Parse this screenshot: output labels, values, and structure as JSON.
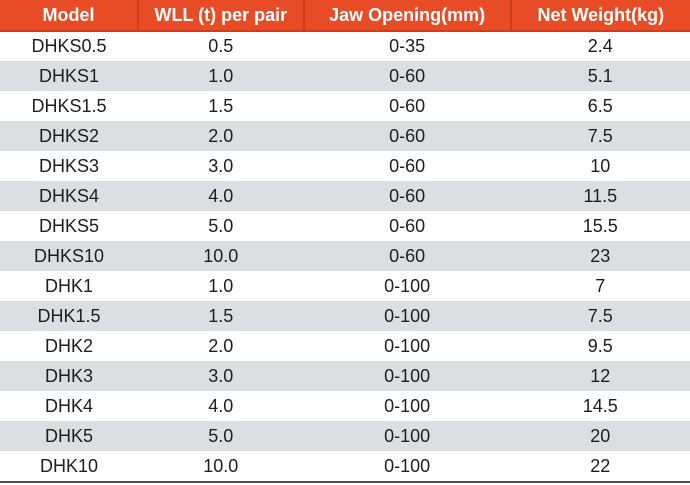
{
  "chart_data": {
    "type": "table",
    "columns": [
      "Model",
      "WLL (t) per pair",
      "Jaw Opening(mm)",
      "Net Weight(kg)"
    ],
    "rows": [
      [
        "DHKS0.5",
        "0.5",
        "0-35",
        "2.4"
      ],
      [
        "DHKS1",
        "1.0",
        "0-60",
        "5.1"
      ],
      [
        "DHKS1.5",
        "1.5",
        "0-60",
        "6.5"
      ],
      [
        "DHKS2",
        "2.0",
        "0-60",
        "7.5"
      ],
      [
        "DHKS3",
        "3.0",
        "0-60",
        "10"
      ],
      [
        "DHKS4",
        "4.0",
        "0-60",
        "11.5"
      ],
      [
        "DHKS5",
        "5.0",
        "0-60",
        "15.5"
      ],
      [
        "DHKS10",
        "10.0",
        "0-60",
        "23"
      ],
      [
        "DHK1",
        "1.0",
        "0-100",
        "7"
      ],
      [
        "DHK1.5",
        "1.5",
        "0-100",
        "7.5"
      ],
      [
        "DHK2",
        "2.0",
        "0-100",
        "9.5"
      ],
      [
        "DHK3",
        "3.0",
        "0-100",
        "12"
      ],
      [
        "DHK4",
        "4.0",
        "0-100",
        "14.5"
      ],
      [
        "DHK5",
        "5.0",
        "0-100",
        "20"
      ],
      [
        "DHK10",
        "10.0",
        "0-100",
        "22"
      ]
    ],
    "layout": {
      "header_row": true,
      "zebra_striping": true,
      "alignment": "center"
    }
  },
  "colors": {
    "header_bg": "#E84C26",
    "header_divider": "#CE3B1D",
    "header_text": "#FFFFFF",
    "row_bg": "#FFFFFF",
    "row_alt_bg": "#DCDFE1",
    "body_text": "#1E1E1E",
    "bottom_border": "#4A4F57"
  }
}
